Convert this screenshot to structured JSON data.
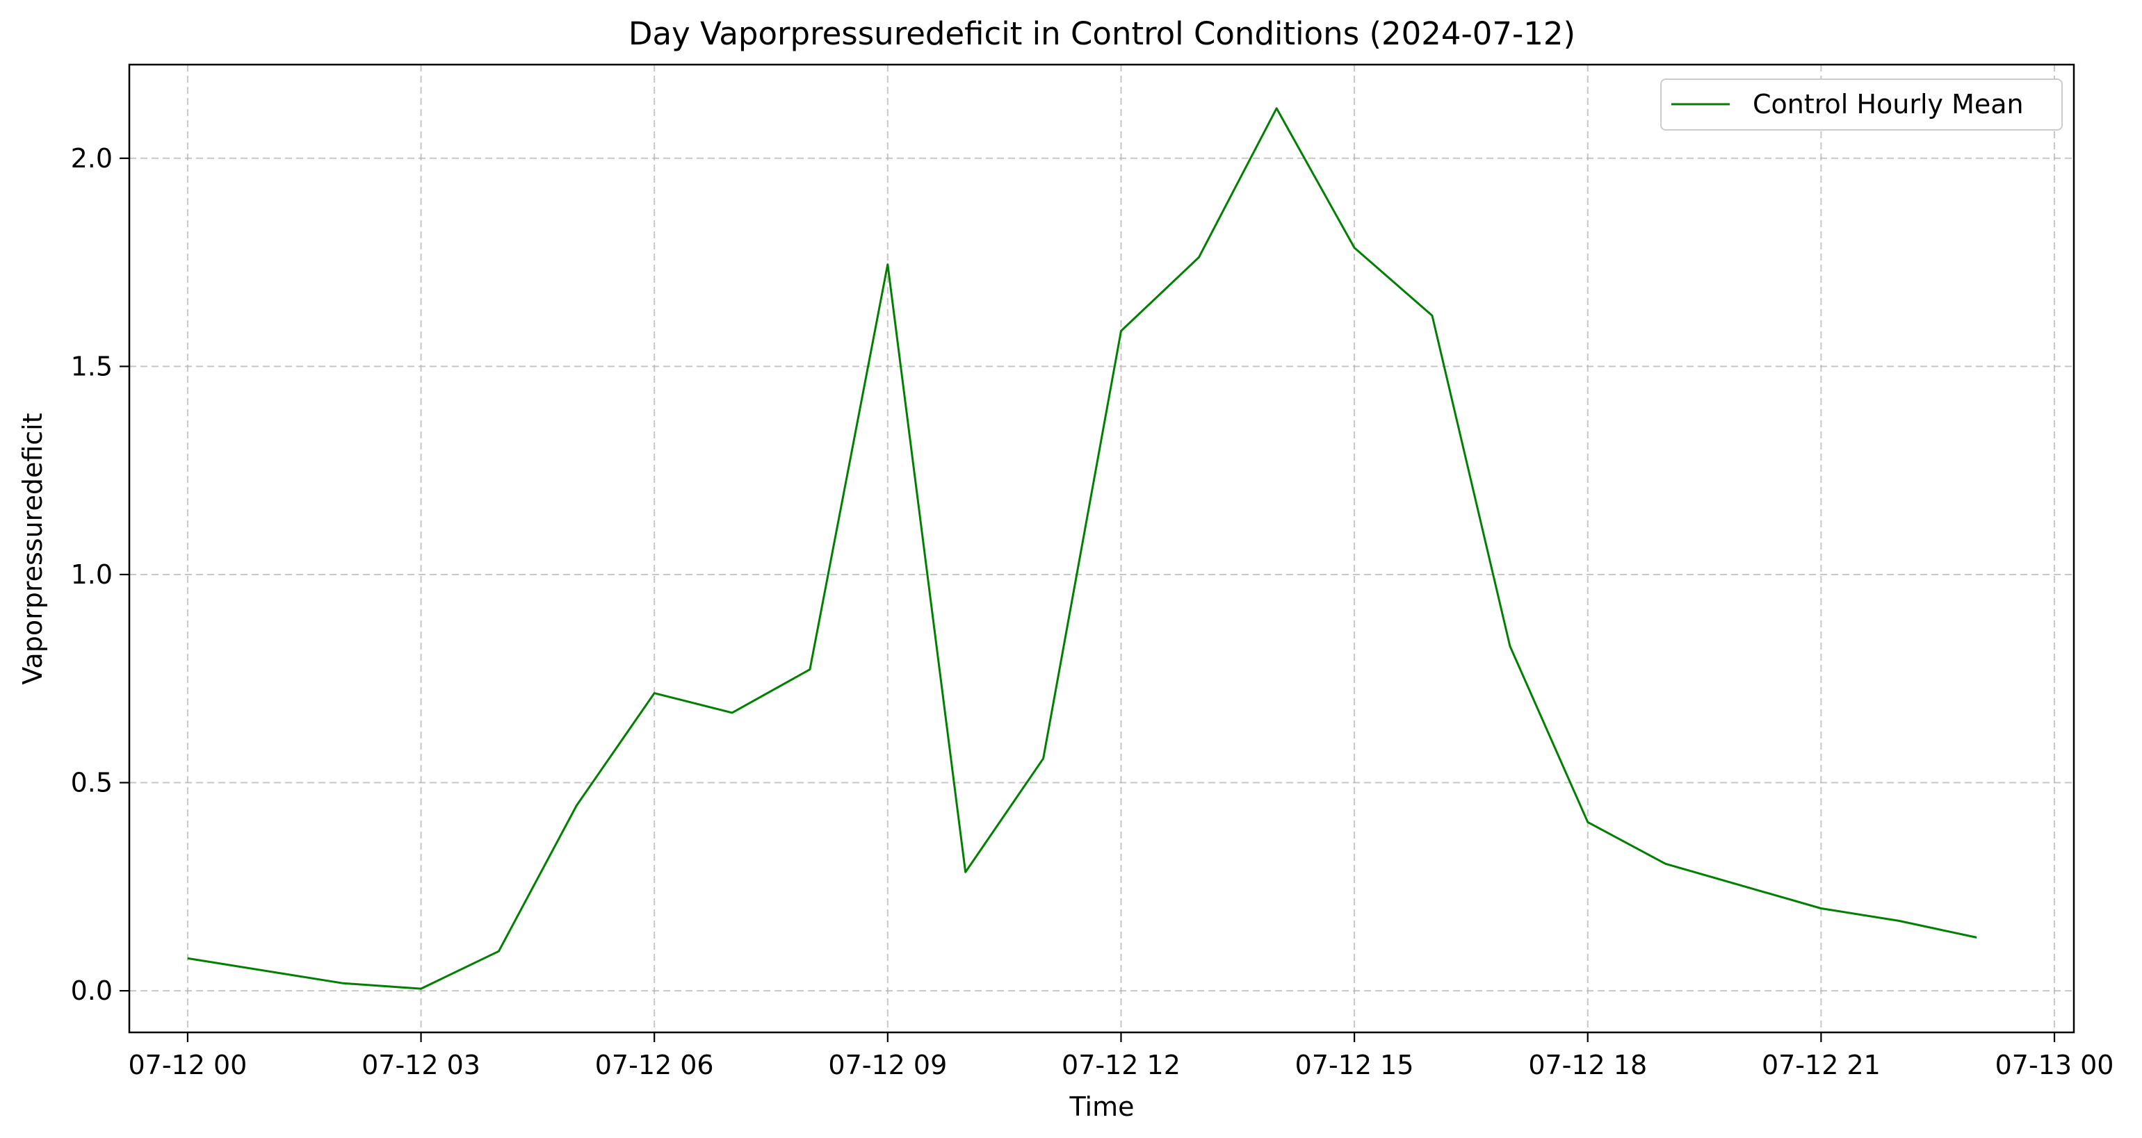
{
  "chart_data": {
    "type": "line",
    "title": "Day Vaporpressuredeficit in Control Conditions (2024-07-12)",
    "xlabel": "Time",
    "ylabel": "Vaporpressuredeficit",
    "xlim": [
      -0.75,
      24.25
    ],
    "ylim": [
      -0.1,
      2.225
    ],
    "x_ticks": [
      0,
      3,
      6,
      9,
      12,
      15,
      18,
      21,
      24
    ],
    "x_tick_labels": [
      "07-12 00",
      "07-12 03",
      "07-12 06",
      "07-12 09",
      "07-12 12",
      "07-12 15",
      "07-12 18",
      "07-12 21",
      "07-13 00"
    ],
    "y_ticks": [
      0.0,
      0.5,
      1.0,
      1.5,
      2.0
    ],
    "y_tick_labels": [
      "0.0",
      "0.5",
      "1.0",
      "1.5",
      "2.0"
    ],
    "grid": true,
    "legend_position": "top-right",
    "series": [
      {
        "name": "Control Hourly Mean",
        "color": "#008000",
        "x": [
          0,
          2,
          3,
          4,
          5,
          6,
          7,
          8,
          9,
          10,
          11,
          12,
          13,
          14,
          15,
          16,
          17,
          18,
          19,
          21,
          22,
          23
        ],
        "y": [
          0.078,
          0.018,
          0.005,
          0.095,
          0.445,
          0.715,
          0.668,
          0.772,
          1.745,
          0.285,
          0.558,
          1.585,
          1.762,
          2.12,
          1.785,
          1.622,
          0.828,
          0.405,
          0.305,
          0.198,
          0.168,
          0.128
        ]
      }
    ]
  }
}
